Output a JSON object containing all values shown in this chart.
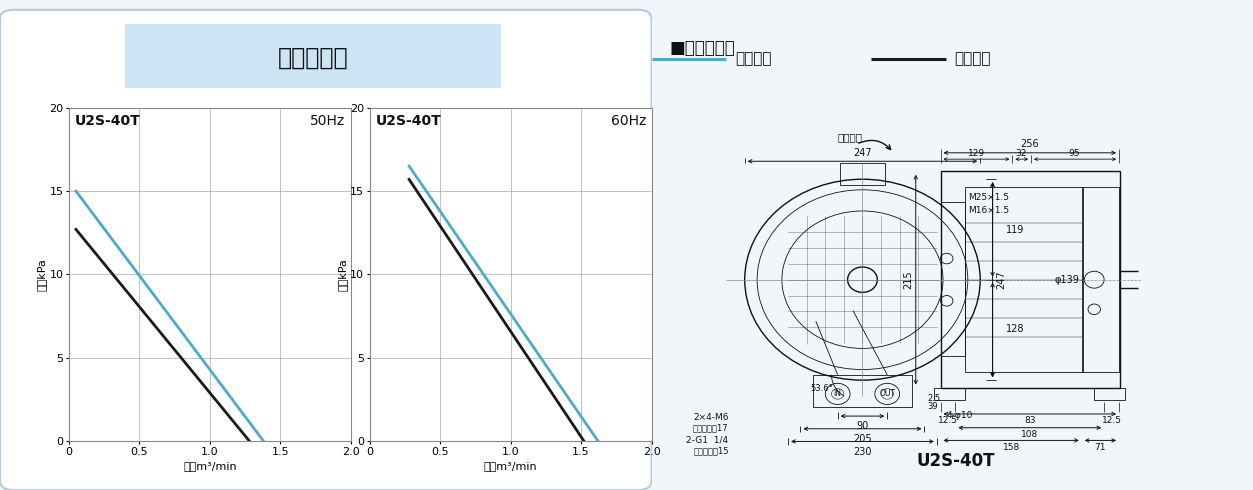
{
  "title": "性能曲線図",
  "legend_blue_label": "吐出性能",
  "legend_black_label": "吸込性能",
  "blue_color": "#4BACC6",
  "black_color": "#1a1a1a",
  "chart1": {
    "title_left": "U2S-40T",
    "title_right": "50Hz",
    "ylabel": "静圧kPa",
    "xlabel": "風量m³/min",
    "xlim": [
      0,
      2.0
    ],
    "ylim": [
      0,
      20
    ],
    "xticks": [
      0,
      0.5,
      1.0,
      1.5,
      2.0
    ],
    "yticks": [
      0,
      5,
      10,
      15,
      20
    ],
    "blue_x": [
      0.05,
      1.38
    ],
    "blue_y": [
      15.0,
      0.0
    ],
    "black_x": [
      0.05,
      1.28
    ],
    "black_y": [
      12.7,
      0.0
    ]
  },
  "chart2": {
    "title_left": "U2S-40T",
    "title_right": "60Hz",
    "ylabel": "静圧kPa",
    "xlabel": "風量m³/min",
    "xlim": [
      0,
      2.0
    ],
    "ylim": [
      0,
      20
    ],
    "xticks": [
      0,
      0.5,
      1.0,
      1.5,
      2.0
    ],
    "yticks": [
      0,
      5,
      10,
      15,
      20
    ],
    "blue_x": [
      0.28,
      1.62
    ],
    "blue_y": [
      16.5,
      0.0
    ],
    "black_x": [
      0.28,
      1.52
    ],
    "black_y": [
      15.7,
      0.0
    ]
  },
  "bg_color": "#f0f6fa",
  "chart_bg": "#ffffff",
  "grid_color": "#999999",
  "title_box_fill": "#cce5f5",
  "title_box_edge": "#aaccdd",
  "drawing_bg": "#ffffff",
  "drawing_border": "#cccccc",
  "dim_color": "#111111",
  "outer_border_fill": "#e8f4fa",
  "outer_border_edge": "#b0cce0"
}
